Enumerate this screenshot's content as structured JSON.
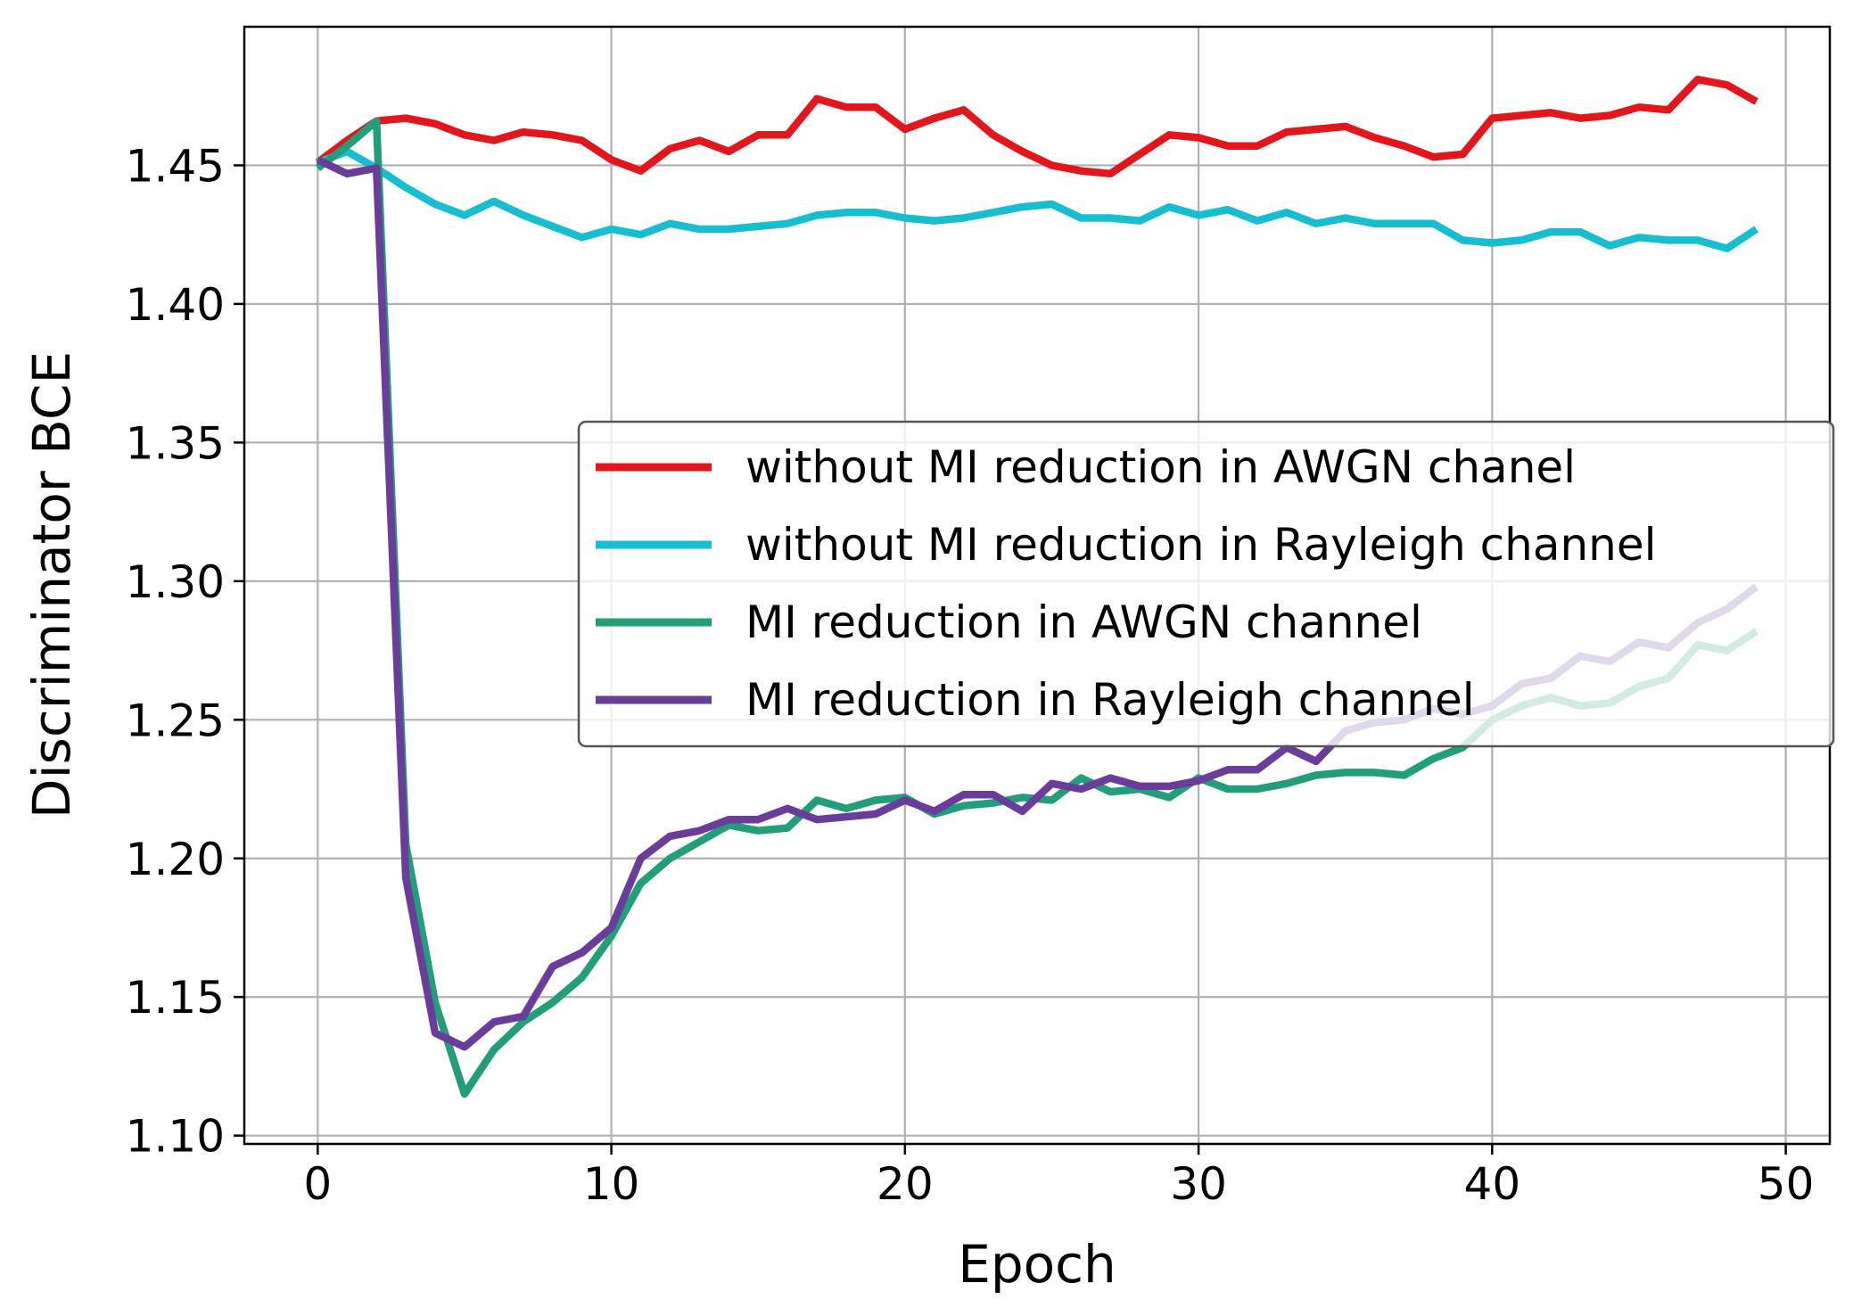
{
  "chart_data": {
    "type": "line",
    "title": "",
    "xlabel": "Epoch",
    "ylabel": "Discriminator BCE",
    "xlim": [
      -2.5,
      51.5
    ],
    "ylim": [
      1.097,
      1.5
    ],
    "xticks": [
      0,
      10,
      20,
      30,
      40,
      50
    ],
    "yticks": [
      1.1,
      1.15,
      1.2,
      1.25,
      1.3,
      1.35,
      1.4,
      1.45
    ],
    "xtick_labels": [
      "0",
      "10",
      "20",
      "30",
      "40",
      "50"
    ],
    "ytick_labels": [
      "1.10",
      "1.15",
      "1.20",
      "1.25",
      "1.30",
      "1.35",
      "1.40",
      "1.45"
    ],
    "grid": true,
    "legend_position": "center-right",
    "series": [
      {
        "name": "without MI reduction in AWGN chanel",
        "color": "#e3161c",
        "values": [
          1.451,
          1.459,
          1.466,
          1.467,
          1.465,
          1.461,
          1.459,
          1.462,
          1.461,
          1.459,
          1.452,
          1.448,
          1.456,
          1.459,
          1.455,
          1.461,
          1.461,
          1.474,
          1.471,
          1.471,
          1.463,
          1.467,
          1.47,
          1.461,
          1.455,
          1.45,
          1.448,
          1.447,
          1.454,
          1.461,
          1.46,
          1.457,
          1.457,
          1.462,
          1.463,
          1.464,
          1.46,
          1.457,
          1.453,
          1.454,
          1.467,
          1.468,
          1.469,
          1.467,
          1.468,
          1.471,
          1.47,
          1.481,
          1.479,
          1.473
        ]
      },
      {
        "name": "without MI reduction in Rayleigh channel",
        "color": "#17becf",
        "values": [
          1.451,
          1.455,
          1.449,
          1.442,
          1.436,
          1.432,
          1.437,
          1.432,
          1.428,
          1.424,
          1.427,
          1.425,
          1.429,
          1.427,
          1.427,
          1.428,
          1.429,
          1.432,
          1.433,
          1.433,
          1.431,
          1.43,
          1.431,
          1.433,
          1.435,
          1.436,
          1.431,
          1.431,
          1.43,
          1.435,
          1.432,
          1.434,
          1.43,
          1.433,
          1.429,
          1.431,
          1.429,
          1.429,
          1.429,
          1.423,
          1.422,
          1.423,
          1.426,
          1.426,
          1.421,
          1.424,
          1.423,
          1.423,
          1.42,
          1.427
        ]
      },
      {
        "name": "MI reduction in AWGN channel",
        "color": "#229e7a",
        "values": [
          1.449,
          1.457,
          1.466,
          1.205,
          1.148,
          1.115,
          1.131,
          1.141,
          1.148,
          1.157,
          1.172,
          1.191,
          1.2,
          1.206,
          1.212,
          1.21,
          1.211,
          1.221,
          1.218,
          1.221,
          1.222,
          1.216,
          1.219,
          1.22,
          1.222,
          1.221,
          1.229,
          1.224,
          1.225,
          1.222,
          1.229,
          1.225,
          1.225,
          1.227,
          1.23,
          1.231,
          1.231,
          1.23,
          1.236,
          1.24,
          1.25,
          1.255,
          1.258,
          1.255,
          1.256,
          1.262,
          1.265,
          1.277,
          1.275,
          1.282
        ]
      },
      {
        "name": "MI reduction in Rayleigh channel",
        "color": "#6a3d9a",
        "values": [
          1.452,
          1.447,
          1.449,
          1.193,
          1.137,
          1.132,
          1.141,
          1.143,
          1.161,
          1.166,
          1.175,
          1.2,
          1.208,
          1.21,
          1.214,
          1.214,
          1.218,
          1.214,
          1.215,
          1.216,
          1.221,
          1.217,
          1.223,
          1.223,
          1.217,
          1.227,
          1.225,
          1.229,
          1.226,
          1.226,
          1.228,
          1.232,
          1.232,
          1.24,
          1.235,
          1.246,
          1.249,
          1.25,
          1.254,
          1.252,
          1.255,
          1.263,
          1.265,
          1.273,
          1.271,
          1.278,
          1.276,
          1.285,
          1.29,
          1.298
        ]
      }
    ]
  }
}
